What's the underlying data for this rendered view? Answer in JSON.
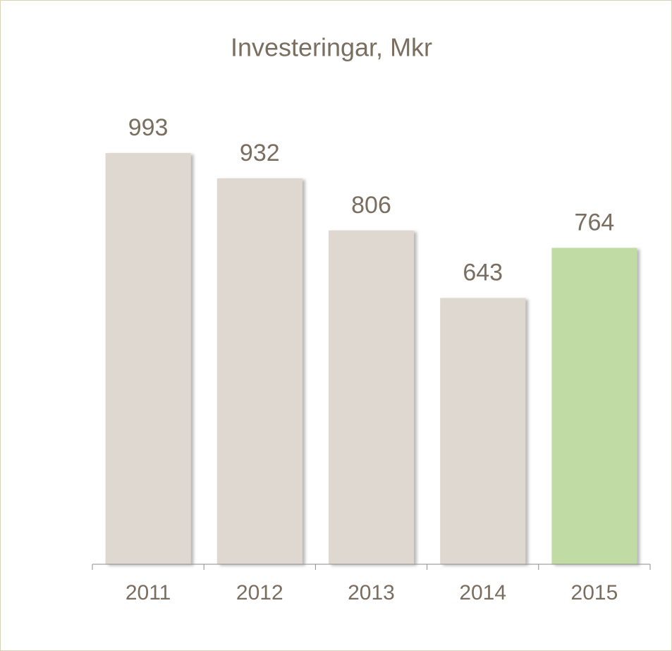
{
  "chart_data": {
    "type": "bar",
    "title": "Investeringar, Mkr",
    "categories": [
      "2011",
      "2012",
      "2013",
      "2014",
      "2015"
    ],
    "values": [
      993,
      932,
      806,
      643,
      764
    ],
    "colors": [
      "#dfd8d1",
      "#dfd8d1",
      "#dfd8d1",
      "#dfd8d1",
      "#c0dba4"
    ],
    "data_labels": true
  }
}
